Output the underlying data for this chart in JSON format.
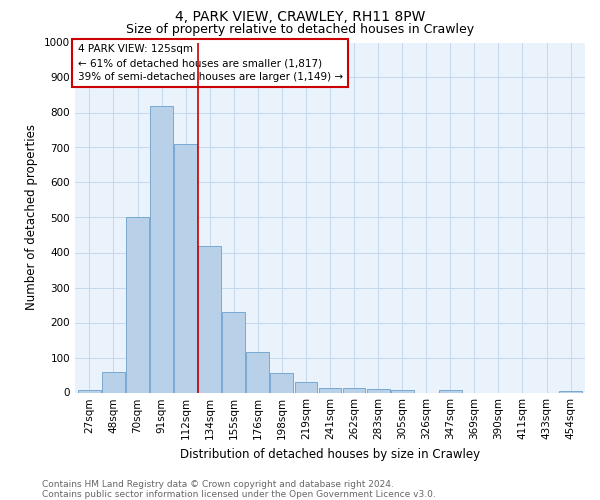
{
  "title_line1": "4, PARK VIEW, CRAWLEY, RH11 8PW",
  "title_line2": "Size of property relative to detached houses in Crawley",
  "xlabel": "Distribution of detached houses by size in Crawley",
  "ylabel": "Number of detached properties",
  "categories": [
    "27sqm",
    "48sqm",
    "70sqm",
    "91sqm",
    "112sqm",
    "134sqm",
    "155sqm",
    "176sqm",
    "198sqm",
    "219sqm",
    "241sqm",
    "262sqm",
    "283sqm",
    "305sqm",
    "326sqm",
    "347sqm",
    "369sqm",
    "390sqm",
    "411sqm",
    "433sqm",
    "454sqm"
  ],
  "values": [
    8,
    58,
    500,
    820,
    710,
    420,
    230,
    117,
    57,
    30,
    14,
    13,
    10,
    7,
    0,
    8,
    0,
    0,
    0,
    0,
    5
  ],
  "bar_color": "#b8d0e8",
  "bar_edge_color": "#6aa0cc",
  "ref_line_x": 4.5,
  "ref_line_label": "4 PARK VIEW: 125sqm",
  "annotation_line1": "← 61% of detached houses are smaller (1,817)",
  "annotation_line2": "39% of semi-detached houses are larger (1,149) →",
  "ylim": [
    0,
    1000
  ],
  "yticks": [
    0,
    100,
    200,
    300,
    400,
    500,
    600,
    700,
    800,
    900,
    1000
  ],
  "footer_line1": "Contains HM Land Registry data © Crown copyright and database right 2024.",
  "footer_line2": "Contains public sector information licensed under the Open Government Licence v3.0.",
  "background_color": "#ffffff",
  "plot_bg_color": "#eaf2fb",
  "grid_color": "#c5d8ed",
  "title_fontsize": 10,
  "subtitle_fontsize": 9,
  "axis_label_fontsize": 8.5,
  "tick_fontsize": 7.5,
  "annotation_fontsize": 7.5,
  "footer_fontsize": 6.5
}
